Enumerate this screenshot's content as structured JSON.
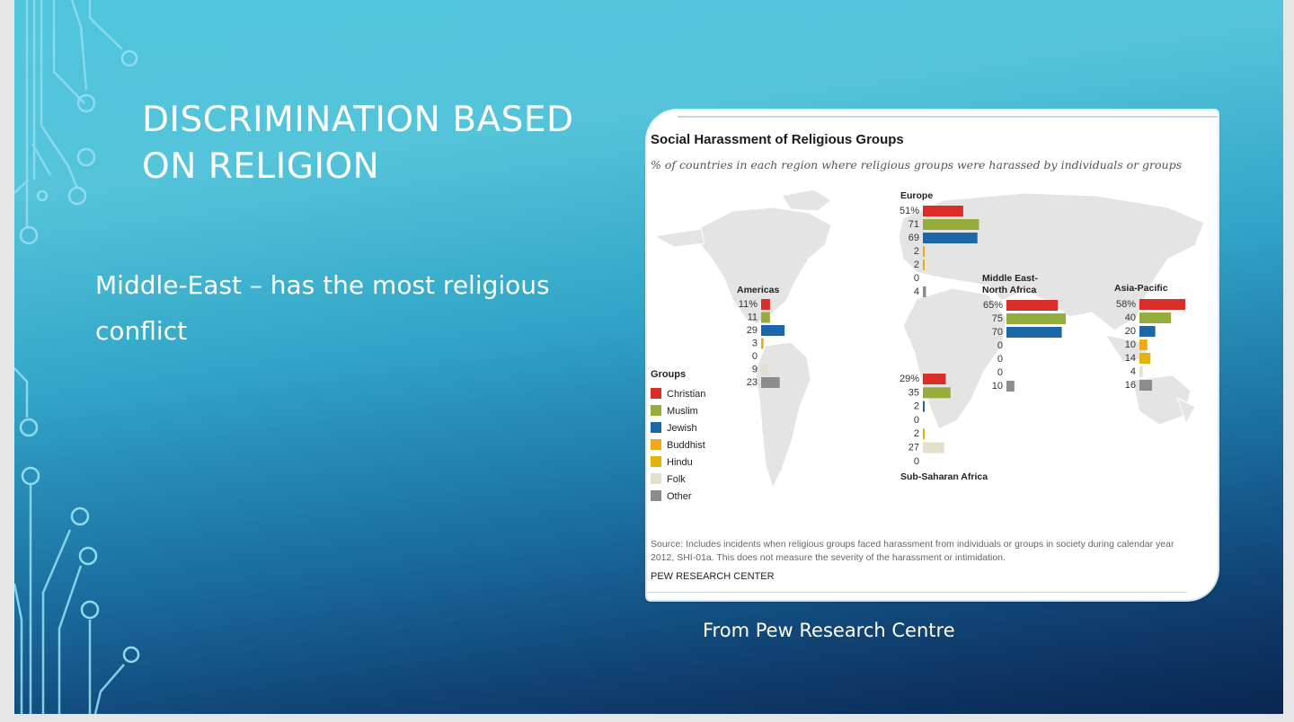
{
  "slide": {
    "title": "Discrimination based\non religion",
    "body": "Middle-East – has the most religious conflict",
    "caption": "From Pew Research Centre"
  },
  "theme": {
    "circuit_color": "#7ed3ec",
    "card_border": "#c8d6df"
  },
  "chart_data": {
    "type": "bar",
    "title": "Social Harassment of Religious Groups",
    "subtitle": "% of countries in each region where religious groups were harassed by individuals or groups",
    "source": "Source: Includes incidents when religious groups faced harassment from individuals or groups in society during calendar year 2012, SHI-01a. This does not measure the severity of the harassment or intimidation.",
    "publisher": "PEW RESEARCH CENTER",
    "legend_title": "Groups",
    "legend_placement": "left",
    "categories": [
      "Christian",
      "Muslim",
      "Jewish",
      "Buddhist",
      "Hindu",
      "Folk",
      "Other"
    ],
    "colors": [
      "#d92d27",
      "#95ad3c",
      "#1b67a8",
      "#f0a81c",
      "#e2b30a",
      "#e2dfcc",
      "#8c8c8c"
    ],
    "unit": "%",
    "series": [
      {
        "name": "Americas",
        "values": [
          11,
          11,
          29,
          3,
          0,
          9,
          23
        ]
      },
      {
        "name": "Europe",
        "values": [
          51,
          71,
          69,
          2,
          2,
          0,
          4
        ]
      },
      {
        "name": "Middle East-North Africa",
        "values": [
          65,
          75,
          70,
          0,
          0,
          0,
          10
        ]
      },
      {
        "name": "Asia-Pacific",
        "values": [
          58,
          40,
          20,
          10,
          14,
          4,
          16
        ]
      },
      {
        "name": "Sub-Saharan Africa",
        "values": [
          29,
          35,
          2,
          0,
          2,
          27,
          0
        ]
      }
    ]
  }
}
